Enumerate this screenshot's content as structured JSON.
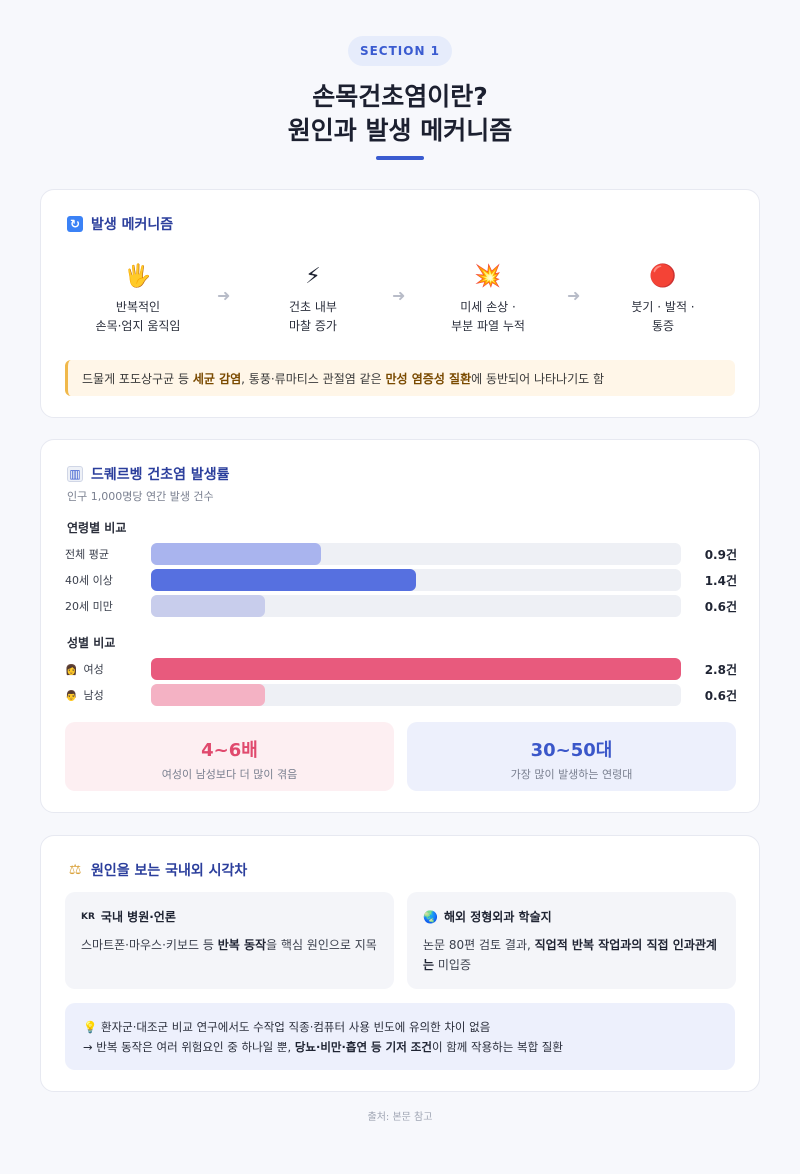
{
  "section_label": "SECTION 1",
  "title_line1": "손목건초염이란?",
  "title_line2": "원인과 발생 메커니즘",
  "mechanism": {
    "heading": "발생 메커니즘",
    "heading_icon": "refresh-icon",
    "steps": [
      {
        "icon": "hand-emoji",
        "emoji": "🖐",
        "line1": "반복적인",
        "line2": "손목·엄지 움직임"
      },
      {
        "icon": "lightning-emoji",
        "emoji": "⚡",
        "line1": "건초 내부",
        "line2": "마찰 증가"
      },
      {
        "icon": "collision-emoji",
        "emoji": "💥",
        "line1": "미세 손상 ·",
        "line2": "부분 파열 누적"
      },
      {
        "icon": "red-circle-emoji",
        "emoji": "🔴",
        "line1": "붓기 · 발적 ·",
        "line2": "통증"
      }
    ],
    "arrow": "➜",
    "note": {
      "t1": "드물게 포도상구균 등 ",
      "b1": "세균 감염",
      "t2": ", 통풍·류마티스 관절염 같은 ",
      "b2": "만성 염증성 질환",
      "t3": "에 동반되어 나타나기도 함"
    }
  },
  "incidence": {
    "heading": "드퀘르벵 건초염 발생률",
    "heading_icon": "bar-chart-icon",
    "subtitle": "인구 1,000명당 연간 발생 건수",
    "age_title": "연령별 비교",
    "gender_title": "성별 비교",
    "age_rows": [
      {
        "label": "전체 평균",
        "value": 0.9,
        "value_text": "0.9건",
        "color": "#a9b4ee"
      },
      {
        "label": "40세 이상",
        "value": 1.4,
        "value_text": "1.4건",
        "color": "#5670e0"
      },
      {
        "label": "20세 미만",
        "value": 0.6,
        "value_text": "0.6건",
        "color": "#c8cdec"
      }
    ],
    "gender_rows": [
      {
        "label": "여성",
        "emoji": "👩",
        "value": 2.8,
        "value_text": "2.8건",
        "color": "#e85a7d"
      },
      {
        "label": "남성",
        "emoji": "👨",
        "value": 0.6,
        "value_text": "0.6건",
        "color": "#f4b2c4"
      }
    ],
    "max_value": 2.8,
    "stats": [
      {
        "big": "4~6배",
        "small": "여성이 남성보다 더 많이 겪음",
        "color": "#e04a6e",
        "bg": "#fdeff2"
      },
      {
        "big": "30~50대",
        "small": "가장 많이 발생하는 연령대",
        "color": "#3b57c9",
        "bg": "#edf0fc"
      }
    ]
  },
  "perspective": {
    "heading": "원인을 보는 국내외 시각차",
    "heading_icon": "scales-icon",
    "domestic": {
      "mark": "KR",
      "title": "국내 병원·언론",
      "t1": "스마트폰·마우스·키보드 등 ",
      "b1": "반복 동작",
      "t2": "을 핵심 원인으로 지목"
    },
    "overseas": {
      "mark": "🌏",
      "title": "해외 정형외과 학술지",
      "t1": "논문 80편 검토 결과, ",
      "b1": "직업적 반복 작업과의 직접 인과관계는",
      "t2": " 미입증"
    },
    "callout": {
      "emoji": "💡",
      "line1": "환자군·대조군 비교 연구에서도 수작업 직종·컴퓨터 사용 빈도에 유의한 차이 없음",
      "l2a": "→ 반복 동작은 여러 위험요인 중 하나일 뿐, ",
      "l2b": "당뇨·비만·흡연 등 기저 조건",
      "l2c": "이 함께 작용하는 복합 질환"
    }
  },
  "source": "출처: 본문 참고"
}
